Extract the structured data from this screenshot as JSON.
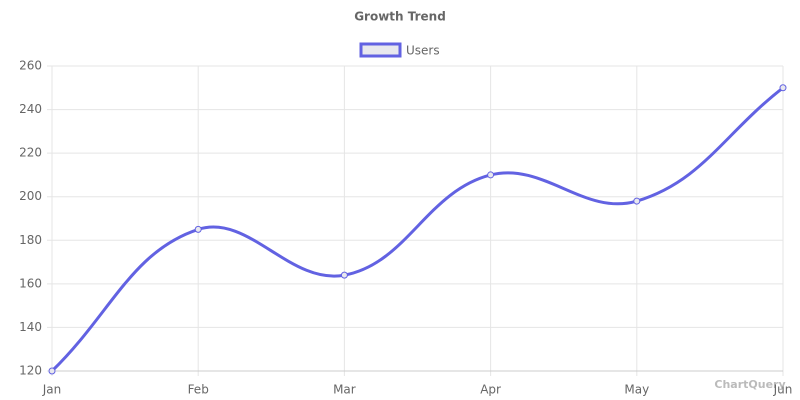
{
  "chart_data": {
    "type": "line",
    "title": "Growth Trend",
    "categories": [
      "Jan",
      "Feb",
      "Mar",
      "Apr",
      "May",
      "Jun"
    ],
    "series": [
      {
        "name": "Users",
        "color": "#6262e2",
        "values": [
          120,
          185,
          164,
          210,
          198,
          250
        ]
      }
    ],
    "ylim": [
      120,
      260
    ],
    "yticks": [
      120,
      140,
      160,
      180,
      200,
      220,
      240,
      260
    ],
    "grid": true,
    "legend": "top",
    "watermark": "ChartQuery"
  }
}
